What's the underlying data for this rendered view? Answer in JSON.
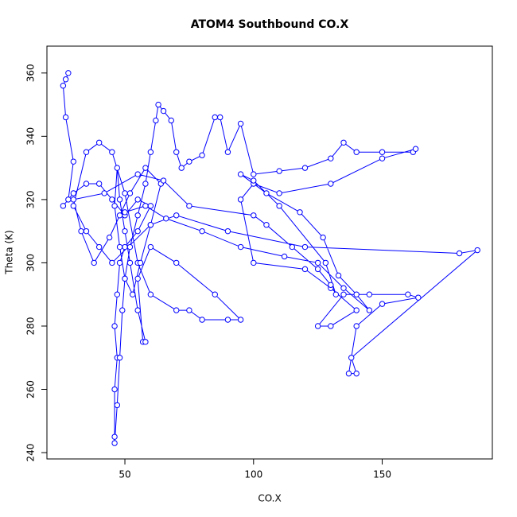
{
  "chart_data": {
    "type": "line",
    "markers": true,
    "title": "ATOM4 Southbound CO.X",
    "xlabel": "CO.X",
    "ylabel": "Theta (K)",
    "color": "#0000ff",
    "x": [
      27,
      28,
      26,
      27,
      30,
      28,
      26,
      30,
      35,
      40,
      45,
      50,
      55,
      60,
      55,
      50,
      48,
      47,
      46,
      47,
      46,
      46,
      46,
      47,
      48,
      49,
      50,
      52,
      55,
      58,
      60,
      62,
      63,
      65,
      68,
      70,
      72,
      75,
      80,
      85,
      87,
      90,
      95,
      100,
      110,
      120,
      130,
      135,
      140,
      150,
      162,
      163,
      150,
      130,
      110,
      100,
      95,
      100,
      120,
      130,
      140,
      130,
      125,
      135,
      145,
      160,
      164,
      150,
      140,
      137,
      140,
      138,
      187,
      180,
      120,
      90,
      70,
      60,
      45,
      40,
      35,
      30,
      35,
      40,
      45,
      50,
      55,
      60,
      70,
      75,
      80,
      90,
      95,
      85,
      70,
      60,
      55,
      57,
      58,
      55,
      52,
      50,
      48,
      47,
      46,
      48,
      50,
      53,
      56,
      60,
      64,
      58,
      52,
      48,
      44,
      38,
      33,
      30,
      42,
      55,
      65,
      75,
      100,
      105,
      115,
      125,
      130,
      132,
      128,
      110,
      100,
      95,
      105,
      118,
      127,
      133,
      140,
      145,
      135,
      125,
      112,
      95,
      80,
      66,
      58,
      50
    ],
    "values": [
      358,
      360,
      356,
      346,
      332,
      320,
      318,
      322,
      325,
      325,
      320,
      315,
      320,
      318,
      310,
      305,
      300,
      290,
      280,
      270,
      260,
      245,
      243,
      255,
      270,
      285,
      295,
      305,
      315,
      325,
      335,
      345,
      350,
      348,
      345,
      335,
      330,
      332,
      334,
      346,
      346,
      335,
      344,
      328,
      329,
      330,
      333,
      338,
      335,
      335,
      335,
      336,
      333,
      325,
      322,
      325,
      320,
      300,
      298,
      292,
      285,
      280,
      280,
      290,
      290,
      290,
      289,
      287,
      280,
      265,
      265,
      270,
      304,
      303,
      305,
      310,
      315,
      312,
      300,
      305,
      310,
      318,
      335,
      338,
      335,
      322,
      300,
      290,
      285,
      285,
      282,
      282,
      282,
      290,
      300,
      305,
      295,
      275,
      275,
      285,
      300,
      310,
      320,
      330,
      318,
      305,
      295,
      290,
      300,
      312,
      325,
      330,
      322,
      315,
      308,
      300,
      310,
      320,
      322,
      328,
      326,
      318,
      315,
      312,
      305,
      298,
      293,
      290,
      300,
      318,
      326,
      328,
      322,
      316,
      308,
      296,
      290,
      285,
      292,
      300,
      302,
      305,
      310,
      314,
      318,
      316
    ],
    "xlim": [
      19.7,
      192.8
    ],
    "ylim": [
      238,
      368.5
    ],
    "xticks": [
      50,
      100,
      150
    ],
    "yticks": [
      240,
      260,
      280,
      300,
      320,
      340,
      360
    ]
  }
}
